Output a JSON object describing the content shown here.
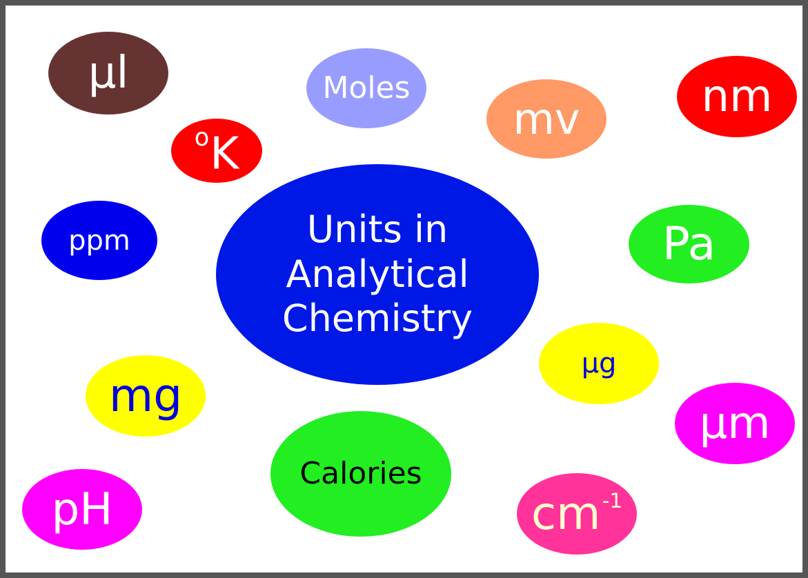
{
  "center": {
    "line1": "Units in",
    "line2": "Analytical",
    "line3": "Chemistry",
    "fill": "#0018e6",
    "text_color": "#ffffff"
  },
  "units": {
    "ul": {
      "label": "µl",
      "fill": "#663333",
      "text_color": "#ffffff"
    },
    "moles": {
      "label": "Moles",
      "fill": "#999cff",
      "text_color": "#ffffff"
    },
    "mv": {
      "label": "mv",
      "fill": "#ff9966",
      "text_color": "#ffffff"
    },
    "nm": {
      "label": "nm",
      "fill": "#ff0000",
      "text_color": "#ffffff"
    },
    "kelvin": {
      "degree": "o",
      "label": "K",
      "fill": "#ff0000",
      "text_color": "#ffffff"
    },
    "ppm": {
      "label": "ppm",
      "fill": "#0000ee",
      "text_color": "#ffffff"
    },
    "pa": {
      "label": "Pa",
      "fill": "#22ee22",
      "text_color": "#ffffff"
    },
    "ug": {
      "label": "µg",
      "fill": "#ffff00",
      "text_color": "#0000dd"
    },
    "mg": {
      "label": "mg",
      "fill": "#ffff00",
      "text_color": "#0000dd"
    },
    "um": {
      "label": "µm",
      "fill": "#ff00ff",
      "text_color": "#ffffff"
    },
    "calories": {
      "label": "Calories",
      "fill": "#22ee22",
      "text_color": "#000000"
    },
    "ph": {
      "label": "pH",
      "fill": "#ff00ff",
      "text_color": "#ffffff"
    },
    "cm": {
      "label": "cm",
      "exponent": "-1",
      "fill": "#ff3399",
      "text_color": "#ffffcc"
    }
  }
}
